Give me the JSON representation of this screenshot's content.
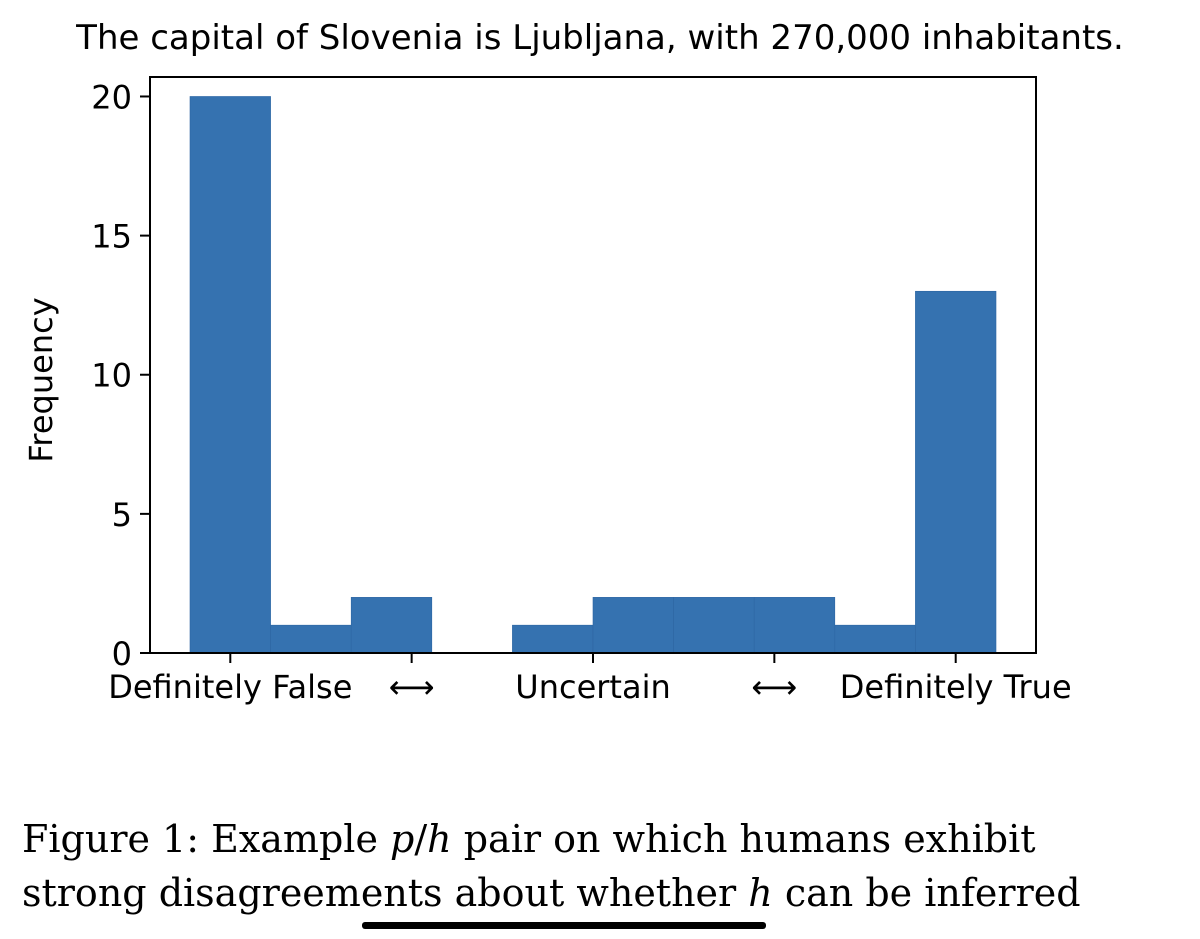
{
  "chart_data": {
    "type": "bar",
    "title": "The capital of Slovenia is Ljubljana, with 270,000 inhabitants.",
    "xlabel": "",
    "ylabel": "Frequency",
    "ylim": [
      0,
      20.7
    ],
    "yticks": [
      0,
      5,
      10,
      15,
      20
    ],
    "x_tick_labels": [
      "Definitely False",
      "⟷",
      "Uncertain",
      "⟷",
      "Definitely True"
    ],
    "bins": 10,
    "values": [
      20,
      1,
      2,
      0,
      1,
      2,
      2,
      2,
      1,
      13
    ],
    "bar_color": "#3572b0",
    "grid": false
  },
  "caption": {
    "prefix": "Figure 1: Example ",
    "math_p": "p",
    "slash": "/",
    "math_h": "h",
    "rest1": " pair on which humans exhibit",
    "line2_a": "strong disagreements about whether ",
    "math_h2": "h",
    "line2_b": " can be inferred"
  }
}
